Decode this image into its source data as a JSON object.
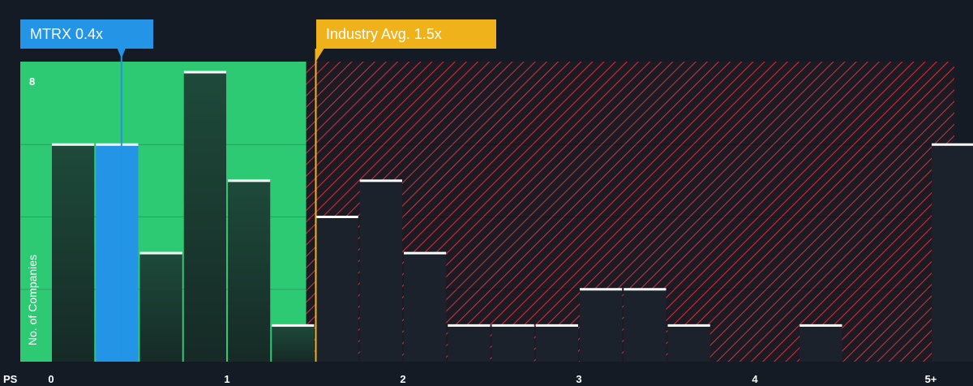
{
  "chart_data": {
    "type": "bar",
    "xlabel": "PS",
    "ylabel": "No. of Companies",
    "x_ticks": [
      "0",
      "1",
      "2",
      "3",
      "4",
      "5+"
    ],
    "y_ticks": [
      "8"
    ],
    "ylim": [
      0,
      8
    ],
    "xlim": [
      -0.1,
      5.1
    ],
    "bin_width": 0.25,
    "bins": [
      {
        "x": 0.0,
        "value": 6,
        "highlight": false
      },
      {
        "x": 0.25,
        "value": 6,
        "highlight": true
      },
      {
        "x": 0.5,
        "value": 3,
        "highlight": false
      },
      {
        "x": 0.75,
        "value": 8,
        "highlight": false
      },
      {
        "x": 1.0,
        "value": 5,
        "highlight": false
      },
      {
        "x": 1.25,
        "value": 1,
        "highlight": false
      },
      {
        "x": 1.5,
        "value": 4,
        "highlight": false
      },
      {
        "x": 1.75,
        "value": 5,
        "highlight": false
      },
      {
        "x": 2.0,
        "value": 3,
        "highlight": false
      },
      {
        "x": 2.25,
        "value": 1,
        "highlight": false
      },
      {
        "x": 2.5,
        "value": 1,
        "highlight": false
      },
      {
        "x": 2.75,
        "value": 1,
        "highlight": false
      },
      {
        "x": 3.0,
        "value": 2,
        "highlight": false
      },
      {
        "x": 3.25,
        "value": 2,
        "highlight": false
      },
      {
        "x": 3.5,
        "value": 1,
        "highlight": false
      },
      {
        "x": 4.25,
        "value": 1,
        "highlight": false
      },
      {
        "x": 5.0,
        "value": 6,
        "highlight": false
      }
    ],
    "company": {
      "label": "MTRX 0.4x",
      "value": 0.4
    },
    "industry": {
      "label": "Industry Avg. 1.5x",
      "value": 1.5
    },
    "fair_zone_end": 1.45
  },
  "colors": {
    "background": "#151b24",
    "fair_zone": "#2ec973",
    "overvalued_hatch": "#c8323c",
    "bar": "#1e4a3a",
    "bar_dark": "#162a26",
    "bar_highlight": "#2394e6",
    "bar_top": "#ffffff",
    "company": "#2394e6",
    "industry": "#f0b21b"
  }
}
